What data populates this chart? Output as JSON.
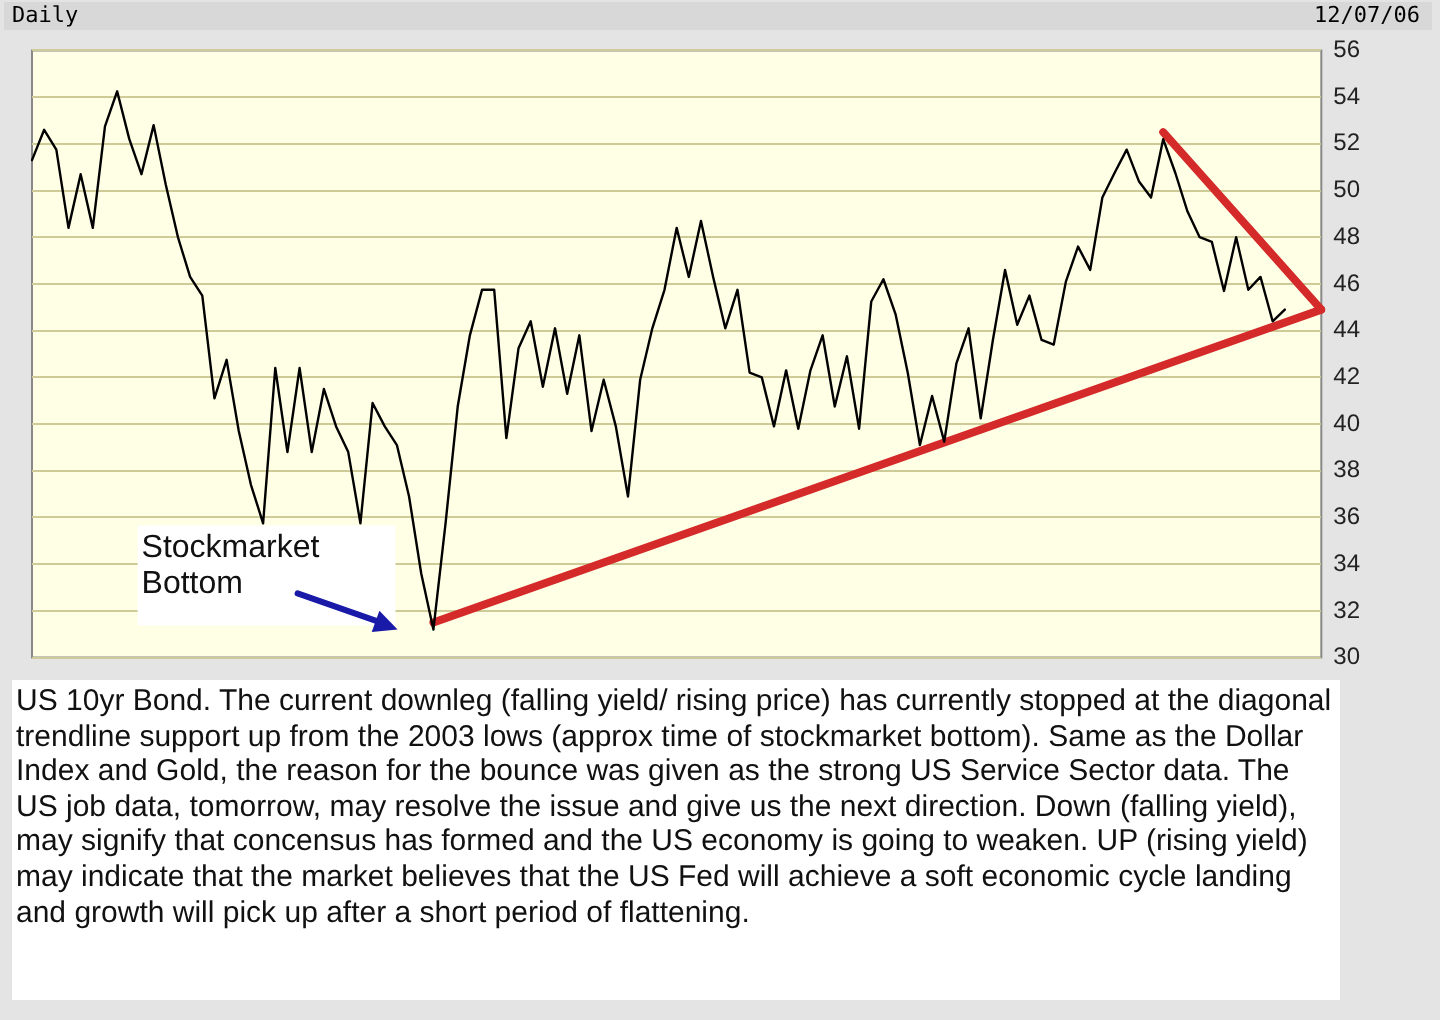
{
  "chart_data": {
    "type": "line",
    "title": "Daily",
    "annotations": [
      "12/07/06",
      "US 10yr Bond. The current downleg (falling yield/ rising price) has currently stopped at the diagonal trendline support up from the 2003 lows (approx time of stockmarket bottom). Same as the Dollar Index and Gold, the reason for the bounce was given as the strong US Service Sector data. The US job data, tomorrow, may resolve the issue and give us the next direction. Down (falling yield), may signify that concensus has formed and the US economy is going to weaken. UP (rising yield) may indicate that the market believes that the US Fed will achieve a soft economic cycle landing and growth will pick up after a short period of flattening.",
      "Stockmarket Bottom"
    ],
    "categories": [
      null,
      null,
      null,
      null,
      null,
      null,
      null,
      null,
      null,
      null,
      null,
      null,
      null,
      null,
      null,
      null,
      null,
      null,
      null,
      null,
      null,
      null,
      null,
      null,
      null,
      null,
      null,
      null,
      null,
      null,
      null,
      null,
      null,
      null,
      null,
      null,
      null,
      null,
      null,
      null,
      null,
      null,
      null,
      null,
      null,
      null,
      null,
      null,
      null,
      null,
      null,
      null,
      null,
      null,
      null,
      null,
      null,
      null,
      null,
      null,
      null,
      null,
      null,
      null,
      null,
      null,
      null,
      null,
      null,
      null,
      null,
      null,
      null,
      null,
      null,
      null,
      null,
      null,
      null,
      null,
      null,
      null,
      null,
      null,
      null,
      null,
      null,
      null,
      null,
      null,
      null,
      null,
      null,
      null,
      null,
      null,
      null,
      null,
      null,
      null,
      null,
      null,
      null,
      null,
      null,
      null,
      null
    ],
    "series": [
      {
        "color": "#000000",
        "values": [
          51.3,
          52.6,
          51.75,
          48.4,
          50.7,
          48.4,
          52.75,
          54.25,
          52.2,
          50.7,
          52.8,
          50.25,
          48,
          46.3,
          45.5,
          41.1,
          42.75,
          39.7,
          37.4,
          35.75,
          42.4,
          38.8,
          42.4,
          38.8,
          41.5,
          39.9,
          38.8,
          35.75,
          40.9,
          39.9,
          39.1,
          36.9,
          33.6,
          31.2,
          35.75,
          40.75,
          43.8,
          45.75,
          45.75,
          39.4,
          43.25,
          44.4,
          41.6,
          44.1,
          41.3,
          43.8,
          39.7,
          41.9,
          39.9,
          36.9,
          41.9,
          44.1,
          45.75,
          48.4,
          46.3,
          48.7,
          46.3,
          44.1,
          45.75,
          42.2,
          42,
          39.9,
          42.3,
          39.8,
          42.3,
          43.8,
          40.75,
          42.9,
          39.8,
          45.25,
          46.2,
          44.7,
          42.2,
          39.1,
          41.2,
          39.25,
          42.6,
          44.1,
          40.25,
          43.6,
          46.6,
          44.25,
          45.5,
          43.6,
          43.4,
          46.1,
          47.6,
          46.6,
          49.7,
          50.75,
          51.75,
          50.4,
          49.7,
          52.2,
          50.75,
          49.1,
          48,
          47.8,
          45.7,
          48,
          45.75,
          46.3,
          44.4,
          44.9,
          null,
          null,
          null
        ]
      },
      {
        "type": "line",
        "color": "#d42a2a",
        "values": [
          null,
          null,
          null,
          null,
          null,
          null,
          null,
          null,
          null,
          null,
          null,
          null,
          null,
          null,
          null,
          null,
          null,
          null,
          null,
          null,
          null,
          null,
          null,
          null,
          null,
          null,
          null,
          null,
          null,
          null,
          null,
          null,
          null,
          31.5,
          null,
          null,
          null,
          null,
          null,
          null,
          null,
          null,
          null,
          null,
          null,
          null,
          null,
          null,
          null,
          null,
          null,
          null,
          null,
          null,
          null,
          null,
          null,
          null,
          null,
          null,
          null,
          null,
          null,
          null,
          null,
          null,
          null,
          null,
          null,
          null,
          null,
          null,
          null,
          null,
          null,
          null,
          null,
          null,
          null,
          null,
          null,
          null,
          null,
          null,
          null,
          null,
          null,
          null,
          null,
          null,
          null,
          null,
          null,
          null,
          null,
          null,
          null,
          null,
          null,
          null,
          null,
          null,
          null,
          null,
          null,
          null,
          44.9
        ]
      },
      {
        "type": "line",
        "color": "#d42a2a",
        "values": [
          null,
          null,
          null,
          null,
          null,
          null,
          null,
          null,
          null,
          null,
          null,
          null,
          null,
          null,
          null,
          null,
          null,
          null,
          null,
          null,
          null,
          null,
          null,
          null,
          null,
          null,
          null,
          null,
          null,
          null,
          null,
          null,
          null,
          null,
          null,
          null,
          null,
          null,
          null,
          null,
          null,
          null,
          null,
          null,
          null,
          null,
          null,
          null,
          null,
          null,
          null,
          null,
          null,
          null,
          null,
          null,
          null,
          null,
          null,
          null,
          null,
          null,
          null,
          null,
          null,
          null,
          null,
          null,
          null,
          null,
          null,
          null,
          null,
          null,
          null,
          null,
          null,
          null,
          null,
          null,
          null,
          null,
          null,
          null,
          null,
          null,
          null,
          null,
          null,
          null,
          null,
          null,
          null,
          52.5,
          null,
          null,
          null,
          null,
          null,
          null,
          null,
          null,
          null,
          null,
          null,
          null,
          44.9
        ]
      }
    ],
    "ylim": [
      30,
      56
    ],
    "yticks": [
      30,
      32,
      34,
      36,
      38,
      40,
      42,
      44,
      46,
      48,
      50,
      52,
      54,
      56
    ],
    "tick_labels": "y",
    "grid": "y",
    "legend": false
  }
}
